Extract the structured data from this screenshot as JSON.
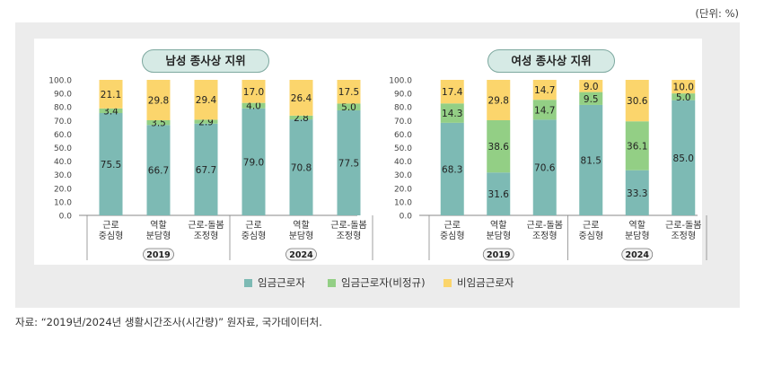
{
  "unit_label": "(단위: %)",
  "source_text": "자료: “2019년/2024년 생활시간조사(시간량)” 원자료, 국가데이터처.",
  "colors": {
    "wage": "#7dbab4",
    "wage_irregular": "#93cf85",
    "non_wage": "#fbd56c"
  },
  "chart_data": [
    {
      "type": "bar",
      "stacked": true,
      "title": "남성 종사상 지위",
      "ylim": [
        0,
        100
      ],
      "yticks": [
        "0.0",
        "10.0",
        "20.0",
        "30.0",
        "40.0",
        "50.0",
        "60.0",
        "70.0",
        "80.0",
        "90.0",
        "100.0"
      ],
      "categories": [
        [
          "근로",
          "중심형"
        ],
        [
          "역할",
          "분담형"
        ],
        [
          "근로-돌봄",
          "조정형"
        ],
        [
          "근로",
          "중심형"
        ],
        [
          "역할",
          "분담형"
        ],
        [
          "근로-돌봄",
          "조정형"
        ]
      ],
      "groups": [
        {
          "label": "2019"
        },
        {
          "label": "2024"
        }
      ],
      "series": [
        {
          "name": "임금근로자",
          "values": [
            75.5,
            66.7,
            67.7,
            79.0,
            70.8,
            77.5
          ]
        },
        {
          "name": "임금근로자(비정규)",
          "values": [
            3.4,
            3.5,
            2.9,
            4.0,
            2.8,
            5.0
          ]
        },
        {
          "name": "비임금근로자",
          "values": [
            21.1,
            29.8,
            29.4,
            17.0,
            26.4,
            17.5
          ]
        }
      ]
    },
    {
      "type": "bar",
      "stacked": true,
      "title": "여성 종사상 지위",
      "ylim": [
        0,
        100
      ],
      "yticks": [
        "0.0",
        "10.0",
        "20.0",
        "30.0",
        "40.0",
        "50.0",
        "60.0",
        "70.0",
        "80.0",
        "90.0",
        "100.0"
      ],
      "categories": [
        [
          "근로",
          "중심형"
        ],
        [
          "역할",
          "분담형"
        ],
        [
          "근로-돌봄",
          "조정형"
        ],
        [
          "근로",
          "중심형"
        ],
        [
          "역할",
          "분담형"
        ],
        [
          "근로-돌봄",
          "조정형"
        ]
      ],
      "groups": [
        {
          "label": "2019"
        },
        {
          "label": "2024"
        }
      ],
      "series": [
        {
          "name": "임금근로자",
          "values": [
            68.3,
            31.6,
            70.6,
            81.5,
            33.3,
            85.0
          ]
        },
        {
          "name": "임금근로자(비정규)",
          "values": [
            14.3,
            38.6,
            14.7,
            9.5,
            36.1,
            5.0
          ]
        },
        {
          "name": "비임금근로자",
          "values": [
            17.4,
            29.8,
            14.7,
            9.0,
            30.6,
            10.0
          ]
        }
      ]
    }
  ],
  "legend": [
    "임금근로자",
    "임금근로자(비정규)",
    "비임금근로자"
  ]
}
